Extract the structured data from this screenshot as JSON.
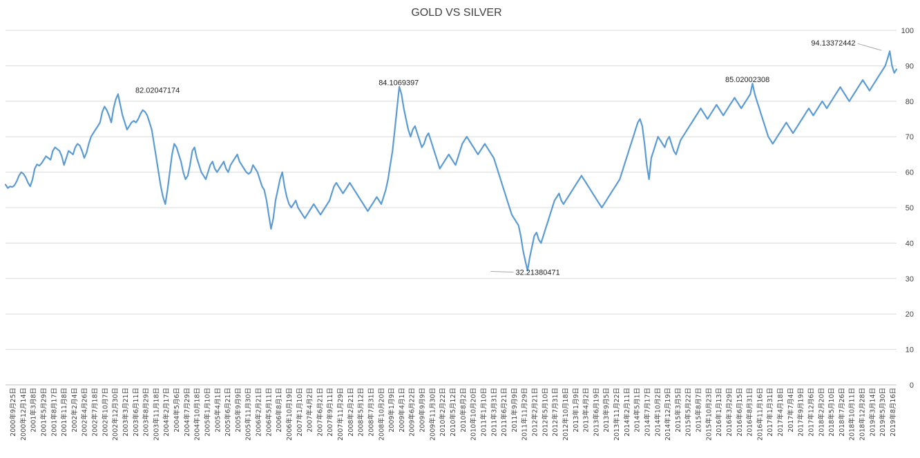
{
  "chart_data": {
    "type": "line",
    "title": "GOLD VS SILVER",
    "xlabel": "",
    "ylabel": "",
    "ylim": [
      0,
      100
    ],
    "y_ticks": [
      "0",
      "10",
      "20",
      "30",
      "40",
      "50",
      "60",
      "70",
      "80",
      "90",
      "100"
    ],
    "grid": true,
    "legend": "none",
    "line_color": "#5B9BD5",
    "x_tick_labels": [
      "2000年9月25日",
      "2000年12月14日",
      "2001年3月8日",
      "2001年5月29日",
      "2001年8月17日",
      "2001年11月8日",
      "2002年2月4日",
      "2002年4月26日",
      "2002年7月18日",
      "2002年10月7日",
      "2002年12月30日",
      "2003年3月21日",
      "2003年6月11日",
      "2003年8月29日",
      "2003年11月18日",
      "2004年2月17日",
      "2004年5月6日",
      "2004年7月29日",
      "2004年10月18日",
      "2005年1月10日",
      "2005年4月1日",
      "2005年6月21日",
      "2005年9月9日",
      "2005年11月30日",
      "2006年2月21日",
      "2006年5月11日",
      "2006年8月1日",
      "2006年10月19日",
      "2007年1月10日",
      "2007年4月2日",
      "2007年6月21日",
      "2007年9月11日",
      "2007年11月29日",
      "2008年2月21日",
      "2008年5月12日",
      "2008年7月31日",
      "2008年10月20日",
      "2009年1月9日",
      "2009年4月1日",
      "2009年6月22日",
      "2009年9月9日",
      "2009年11月30日",
      "2010年2月22日",
      "2010年5月12日",
      "2010年8月2日",
      "2010年10月20日",
      "2011年1月10日",
      "2011年3月31日",
      "2011年6月21日",
      "2011年9月9日",
      "2011年11月29日",
      "2012年2月21日",
      "2012年5月10日",
      "2012年7月31日",
      "2012年10月18日",
      "2013年1月9日",
      "2013年4月2日",
      "2013年6月19日",
      "2013年9月5日",
      "2013年11月22日",
      "2014年2月11日",
      "2014年5月1日",
      "2014年7月17日",
      "2014年10月2日",
      "2014年12月19日",
      "2015年3月5日",
      "2015年5月22日",
      "2015年8月7日",
      "2015年10月23日",
      "2016年1月13日",
      "2016年3月29日",
      "2016年6月15日",
      "2016年8月31日",
      "2016年11月16日",
      "2017年1月31日",
      "2017年4月18日",
      "2017年7月4日",
      "2017年9月19日",
      "2017年12月6日",
      "2018年2月20日",
      "2018年5月10日",
      "2018年7月26日",
      "2018年10月11日",
      "2018年12月28日",
      "2019年3月14日",
      "2019年5月30日",
      "2019年8月16日"
    ],
    "series": [
      {
        "values": [
          56.5,
          55.5,
          56,
          55.8,
          56.3,
          57.5,
          59,
          60,
          59.5,
          58.5,
          57,
          56,
          58,
          61,
          62.2,
          61.8,
          62.5,
          63.5,
          64.5,
          64,
          63.5,
          66,
          67,
          66.5,
          66,
          64.5,
          62,
          64,
          66,
          65.5,
          65,
          67,
          68,
          67.5,
          66,
          64,
          65.5,
          68,
          70,
          71,
          72,
          73,
          74,
          77,
          78.5,
          77.5,
          76,
          74,
          78,
          80.5,
          82.02,
          79,
          76,
          74,
          72,
          73,
          74,
          74.5,
          74,
          75,
          76.5,
          77.5,
          77,
          76,
          74,
          72,
          68,
          64,
          60,
          56,
          53,
          51,
          55,
          60,
          65,
          68,
          67,
          65,
          63,
          60,
          58,
          59,
          62,
          66,
          67,
          64,
          62,
          60,
          59,
          58,
          60,
          62,
          63,
          61,
          60,
          61,
          62,
          63,
          61,
          60,
          62,
          63,
          64,
          65,
          63,
          62,
          61,
          60,
          59.5,
          60,
          62,
          61,
          60,
          58,
          56,
          55,
          52,
          48,
          44,
          47,
          52,
          55,
          58,
          60,
          56,
          53,
          51,
          50,
          51,
          52,
          50,
          49,
          48,
          47,
          48,
          49,
          50,
          51,
          50,
          49,
          48,
          49,
          50,
          51,
          52,
          54,
          56,
          57,
          56,
          55,
          54,
          55,
          56,
          57,
          56,
          55,
          54,
          53,
          52,
          51,
          50,
          49,
          50,
          51,
          52,
          53,
          52,
          51,
          53,
          55,
          58,
          62,
          66,
          72,
          78,
          84.11,
          82,
          78,
          75,
          72,
          70,
          72,
          73,
          71,
          69,
          67,
          68,
          70,
          71,
          69,
          67,
          65,
          63,
          61,
          62,
          63,
          64,
          65,
          64,
          63,
          62,
          64,
          66,
          68,
          69,
          70,
          69,
          68,
          67,
          66,
          65,
          66,
          67,
          68,
          67,
          66,
          65,
          64,
          62,
          60,
          58,
          56,
          54,
          52,
          50,
          48,
          47,
          46,
          45,
          42,
          38,
          35,
          32.21,
          36,
          39,
          42,
          43,
          41,
          40,
          42,
          44,
          46,
          48,
          50,
          52,
          53,
          54,
          52,
          51,
          52,
          53,
          54,
          55,
          56,
          57,
          58,
          59,
          58,
          57,
          56,
          55,
          54,
          53,
          52,
          51,
          50,
          51,
          52,
          53,
          54,
          55,
          56,
          57,
          58,
          60,
          62,
          64,
          66,
          68,
          70,
          72,
          74,
          75,
          73,
          68,
          62,
          58,
          64,
          66,
          68,
          70,
          69,
          68,
          67,
          69,
          70,
          68,
          66,
          65,
          67,
          69,
          70,
          71,
          72,
          73,
          74,
          75,
          76,
          77,
          78,
          77,
          76,
          75,
          76,
          77,
          78,
          79,
          78,
          77,
          76,
          77,
          78,
          79,
          80,
          81,
          80,
          79,
          78,
          79,
          80,
          81,
          82,
          85.02,
          82,
          80,
          78,
          76,
          74,
          72,
          70,
          69,
          68,
          69,
          70,
          71,
          72,
          73,
          74,
          73,
          72,
          71,
          72,
          73,
          74,
          75,
          76,
          77,
          78,
          77,
          76,
          77,
          78,
          79,
          80,
          79,
          78,
          79,
          80,
          81,
          82,
          83,
          84,
          83,
          82,
          81,
          80,
          81,
          82,
          83,
          84,
          85,
          86,
          85,
          84,
          83,
          84,
          85,
          86,
          87,
          88,
          89,
          90,
          92,
          94.13,
          90,
          88,
          89
        ]
      }
    ],
    "annotations": [
      {
        "value": 82.02047174,
        "label": "82.02047174",
        "x_fraction": 0.138,
        "y": 82.02
      },
      {
        "value": 84.1069397,
        "label": "84.1069397",
        "x_fraction": 0.411,
        "y": 84.11
      },
      {
        "value": 32.21380471,
        "label": "32.21380471",
        "x_fraction": 0.543,
        "y": 32.21
      },
      {
        "value": 85.02002308,
        "label": "85.02002308",
        "x_fraction": 0.8,
        "y": 85.02
      },
      {
        "value": 94.13372442,
        "label": "94.13372442",
        "x_fraction": 0.985,
        "y": 94.13
      }
    ]
  }
}
